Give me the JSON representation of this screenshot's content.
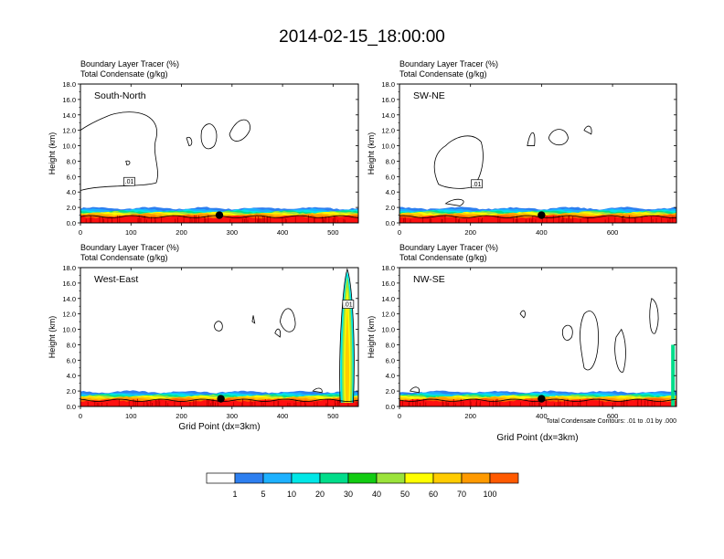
{
  "title": "2014-02-15_18:00:00",
  "panel_titles": {
    "line1": "Boundary Layer Tracer   (%)",
    "line2": "Total Condensate   (g/kg)"
  },
  "axes": {
    "ylabel": "Height (km)",
    "xlabel": "Grid Point (dx=3km)",
    "yticks": [
      "0.0",
      "2.0",
      "4.0",
      "6.0",
      "8.0",
      "10.0",
      "12.0",
      "14.0",
      "16.0",
      "18.0"
    ]
  },
  "contour_note": "Total Condensate Contours: .01 to .01 by .000",
  "colorbar": {
    "colors": [
      "#ffffff",
      "#2d7ff0",
      "#1db1ff",
      "#00e7e7",
      "#00dd8a",
      "#12cc12",
      "#9be33b",
      "#ffff00",
      "#ffcc00",
      "#ff9a00",
      "#ff5a00",
      "#ff1010"
    ],
    "labels": [
      "1",
      "5",
      "10",
      "20",
      "30",
      "40",
      "50",
      "60",
      "70",
      "100"
    ]
  },
  "chart_data": [
    {
      "type": "contour",
      "name": "South-North",
      "label": "South-North",
      "xlim": [
        0,
        550
      ],
      "ylim": [
        0,
        18
      ],
      "xticks": [
        0,
        100,
        200,
        300,
        400,
        500
      ],
      "xticklabels": [
        "0",
        "100",
        "200",
        "300",
        "400",
        "500"
      ],
      "contour_label": ".01",
      "contour_label_pos": [
        95,
        5.3
      ],
      "marker": [
        275,
        1.0
      ]
    },
    {
      "type": "contour",
      "name": "SW-NE",
      "label": "SW-NE",
      "xlim": [
        0,
        780
      ],
      "ylim": [
        0,
        18
      ],
      "xticks": [
        0,
        200,
        400,
        600
      ],
      "xticklabels": [
        "0",
        "200",
        "400",
        "600"
      ],
      "contour_label": ".01",
      "contour_label_pos": [
        215,
        5.0
      ],
      "marker": [
        400,
        1.0
      ]
    },
    {
      "type": "contour",
      "name": "West-East",
      "label": "West-East",
      "xlim": [
        0,
        550
      ],
      "ylim": [
        0,
        18
      ],
      "xticks": [
        0,
        100,
        200,
        300,
        400,
        500
      ],
      "xticklabels": [
        "0",
        "100",
        "200",
        "300",
        "400",
        "500"
      ],
      "contour_label": ".01",
      "contour_label_pos": [
        528,
        13.2
      ],
      "marker": [
        278,
        1.0
      ]
    },
    {
      "type": "contour",
      "name": "NW-SE",
      "label": "NW-SE",
      "xlim": [
        0,
        780
      ],
      "ylim": [
        0,
        18
      ],
      "xticks": [
        0,
        200,
        400,
        600
      ],
      "xticklabels": [
        "0",
        "200",
        "400",
        "600"
      ],
      "contour_label": "",
      "contour_label_pos": null,
      "marker": [
        400,
        1.0
      ]
    }
  ]
}
